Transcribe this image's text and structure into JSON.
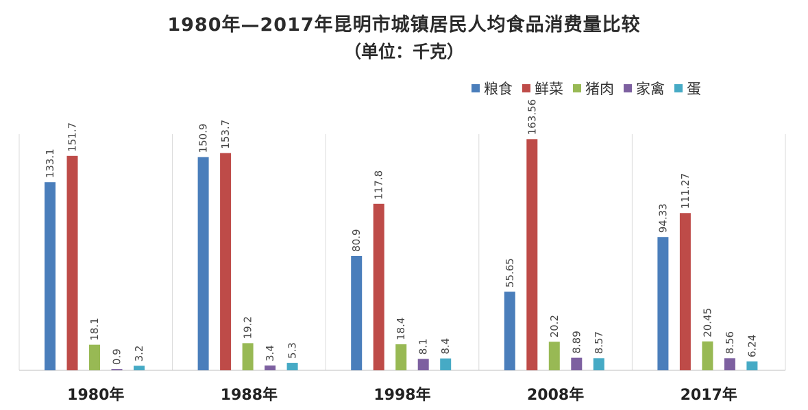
{
  "chart_data": {
    "type": "bar",
    "title": "1980年—2017年昆明市城镇居民人均食品消费量比较",
    "subtitle": "（单位：千克）",
    "categories": [
      "1980年",
      "1988年",
      "1998年",
      "2008年",
      "2017年"
    ],
    "series": [
      {
        "name": "粮食",
        "color": "#4a7ebb",
        "values": [
          133.1,
          150.9,
          80.9,
          55.65,
          94.33
        ],
        "labels": [
          "133.1",
          "150.9",
          "80.9",
          "55.65",
          "94.33"
        ]
      },
      {
        "name": "鲜菜",
        "color": "#be4b48",
        "values": [
          151.7,
          153.7,
          117.8,
          163.56,
          111.27
        ],
        "labels": [
          "151.7",
          "153.7",
          "117.8",
          "163.56",
          "111.27"
        ]
      },
      {
        "name": "猪肉",
        "color": "#98b954",
        "values": [
          18.1,
          19.2,
          18.4,
          20.2,
          20.45
        ],
        "labels": [
          "18.1",
          "19.2",
          "18.4",
          "20.2",
          "20.45"
        ]
      },
      {
        "name": "家禽",
        "color": "#7d60a0",
        "values": [
          0.9,
          3.4,
          8.1,
          8.89,
          8.56
        ],
        "labels": [
          "0.9",
          "3.4",
          "8.1",
          "8.89",
          "8.56"
        ]
      },
      {
        "name": "蛋",
        "color": "#46aac5",
        "values": [
          3.2,
          5.3,
          8.4,
          8.57,
          6.24
        ],
        "labels": [
          "3.2",
          "5.3",
          "8.4",
          "8.57",
          "6.24"
        ]
      }
    ],
    "ylim": [
      0,
      170
    ],
    "legend_position": "top-right",
    "grid": false,
    "category_dividers": true
  }
}
